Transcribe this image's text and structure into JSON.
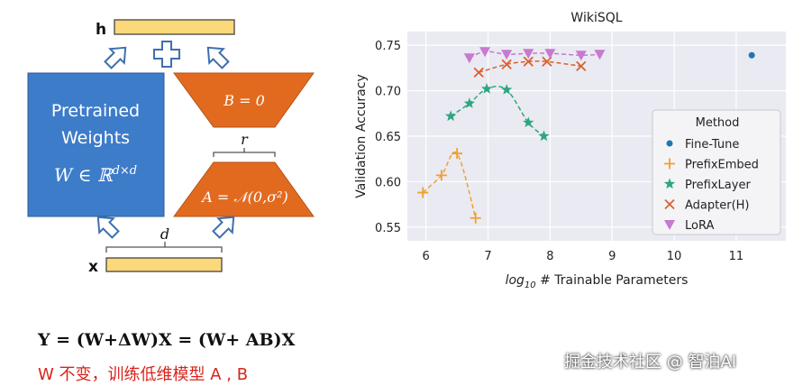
{
  "diagram": {
    "h_label": "h",
    "x_label": "x",
    "pretrained_line1": "Pretrained",
    "pretrained_line2": "Weights",
    "pretrained_math": "W ∈ ℝd×d",
    "b_label": "B = 0",
    "a_label": "A = 𝒩(0,σ²)",
    "r_label": "r",
    "d_label": "d",
    "colors": {
      "blue": "#3d7cc9",
      "orange": "#e26a1f",
      "yellow": "#fbd87a",
      "arrow": "#3f6fae"
    }
  },
  "chart_data": {
    "type": "scatter",
    "title": "WikiSQL",
    "xlabel": "log10 # Trainable Parameters",
    "ylabel": "Validation Accuracy",
    "xlim": [
      5.7,
      11.8
    ],
    "ylim": [
      0.535,
      0.765
    ],
    "xticks": [
      "6",
      "7",
      "8",
      "9",
      "10",
      "11"
    ],
    "yticks": [
      "0.55",
      "0.60",
      "0.65",
      "0.70",
      "0.75"
    ],
    "grid": true,
    "legend_title": "Method",
    "legend_position": "right",
    "series": [
      {
        "name": "Fine-Tune",
        "marker": "circle",
        "color": "#1f77b4",
        "x": [
          11.25
        ],
        "y": [
          0.739
        ]
      },
      {
        "name": "PrefixEmbed",
        "marker": "plus",
        "color": "#f0a030",
        "x": [
          5.95,
          6.25,
          6.5,
          6.8
        ],
        "y": [
          0.588,
          0.607,
          0.631,
          0.56
        ]
      },
      {
        "name": "PrefixLayer",
        "marker": "star",
        "color": "#2ca680",
        "x": [
          6.4,
          6.7,
          6.98,
          7.3,
          7.65,
          7.9
        ],
        "y": [
          0.672,
          0.686,
          0.702,
          0.701,
          0.665,
          0.65
        ]
      },
      {
        "name": "Adapter(H)",
        "marker": "x",
        "color": "#d9622b",
        "x": [
          6.85,
          7.3,
          7.65,
          7.95,
          8.5
        ],
        "y": [
          0.72,
          0.729,
          0.732,
          0.732,
          0.727
        ]
      },
      {
        "name": "LoRA",
        "marker": "triangle-down",
        "color": "#c879d0",
        "x": [
          6.7,
          6.95,
          7.3,
          7.65,
          8.0,
          8.5,
          8.8
        ],
        "y": [
          0.736,
          0.743,
          0.74,
          0.741,
          0.741,
          0.739,
          0.74
        ]
      }
    ]
  },
  "formula": "Y = (W+ΔW)X = (W+ AB)X",
  "note": "W 不变，训练低维模型 A , B",
  "watermark": "掘金技术社区 @ 智泊AI"
}
